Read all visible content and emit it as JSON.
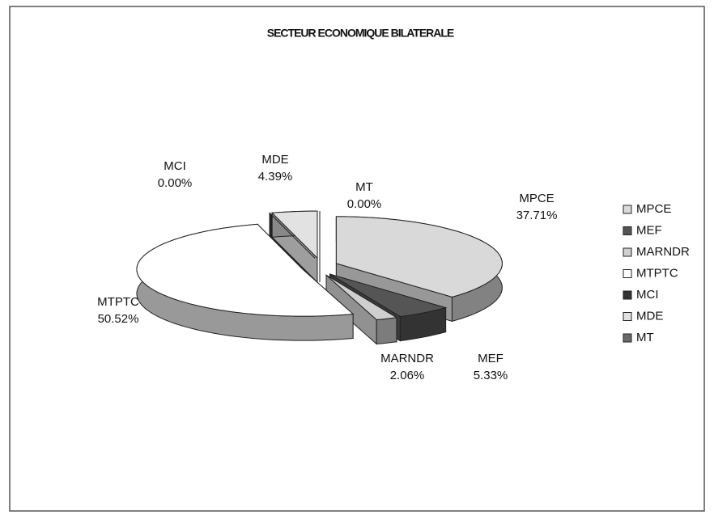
{
  "chart_data": {
    "type": "pie",
    "title": "SECTEUR ECONOMIQUE BILATERALE",
    "categories": [
      "MPCE",
      "MEF",
      "MARNDR",
      "MTPTC",
      "MCI",
      "MDE",
      "MT"
    ],
    "values": [
      37.71,
      5.33,
      2.06,
      50.52,
      0.0,
      4.39,
      0.0
    ],
    "value_labels": [
      "37.71%",
      "5.33%",
      "2.06%",
      "50.52%",
      "0.00%",
      "4.39%",
      "0.00%"
    ],
    "colors": [
      "#d9d9d9",
      "#555555",
      "#cfcfcf",
      "#ffffff",
      "#333333",
      "#e2e2e2",
      "#6a6a6a"
    ],
    "legend": "right"
  }
}
